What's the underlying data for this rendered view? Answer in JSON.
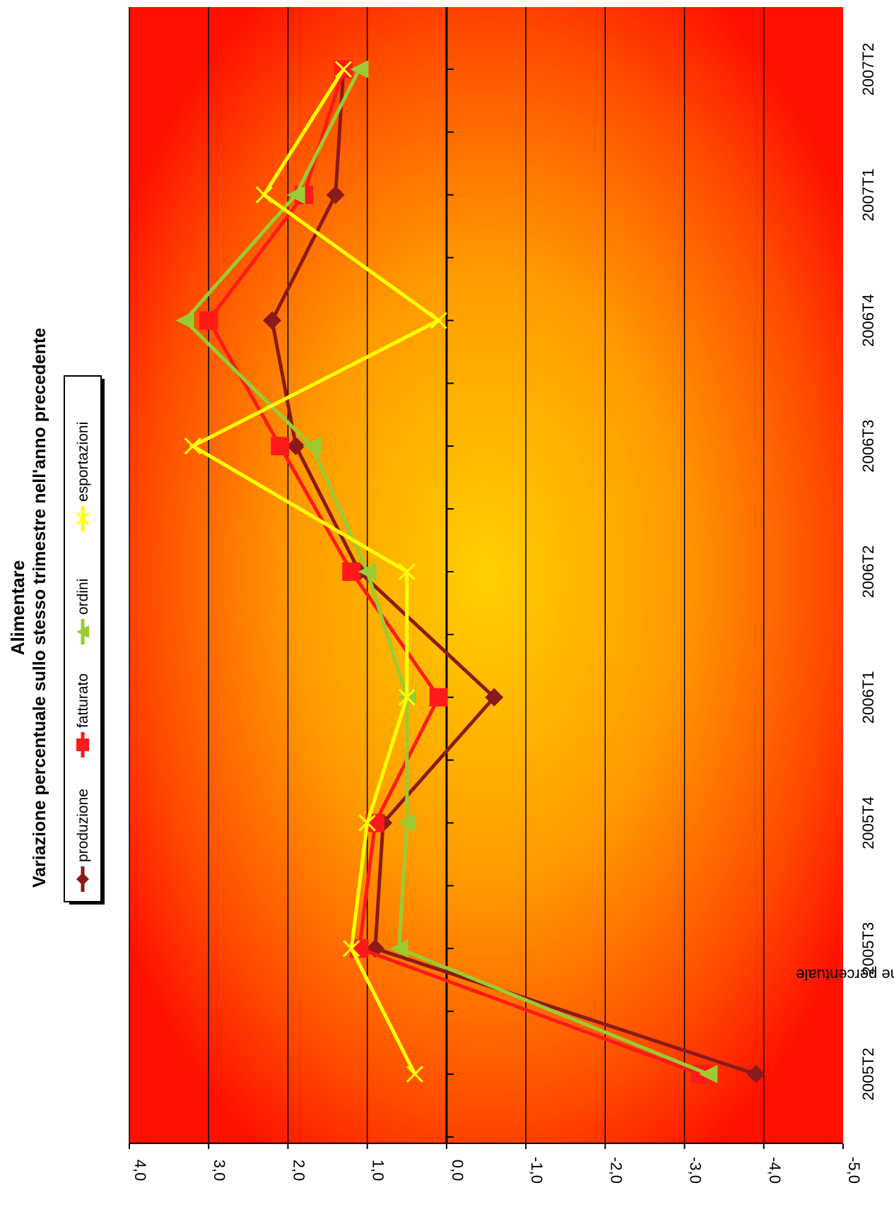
{
  "chart_data": {
    "type": "line",
    "title": "Alimentare",
    "subtitle": "Variazione percentuale sullo stesso trimestre nell'anno precedente",
    "xlabel": "",
    "ylabel": "Variazione percentuale",
    "categories": [
      "2005T2",
      "2005T3",
      "2005T4",
      "2006T1",
      "2006T2",
      "2006T3",
      "2006T4",
      "2007T1",
      "2007T2"
    ],
    "ylim": [
      -5.0,
      4.0
    ],
    "yticks": [
      "4,0",
      "3,0",
      "2,0",
      "1,0",
      "0,0",
      "-1,0",
      "-2,0",
      "-3,0",
      "-4,0",
      "-5,0"
    ],
    "ytick_values": [
      4,
      3,
      2,
      1,
      0,
      -1,
      -2,
      -3,
      -4,
      -5
    ],
    "grid": true,
    "legend_position": "top",
    "background": "radial gradient yellow-orange-red",
    "series": [
      {
        "name": "produzione",
        "color": "#8b1a1a",
        "marker": "diamond",
        "values": [
          -3.9,
          0.9,
          0.8,
          -0.6,
          1.1,
          1.9,
          2.2,
          1.4,
          1.3
        ]
      },
      {
        "name": "fatturato",
        "color": "#ff1a1a",
        "marker": "square",
        "values": [
          -3.2,
          1.1,
          0.9,
          0.1,
          1.2,
          2.1,
          3.0,
          1.8,
          1.3
        ]
      },
      {
        "name": "ordini",
        "color": "#99cc33",
        "marker": "triangle",
        "values": [
          -3.3,
          0.6,
          0.5,
          0.5,
          1.0,
          1.7,
          3.3,
          1.9,
          1.1
        ]
      },
      {
        "name": "esportazioni",
        "color": "#ffff00",
        "marker": "x",
        "values": [
          0.4,
          1.2,
          1.0,
          0.5,
          0.5,
          3.2,
          0.1,
          2.3,
          1.3
        ]
      }
    ]
  }
}
